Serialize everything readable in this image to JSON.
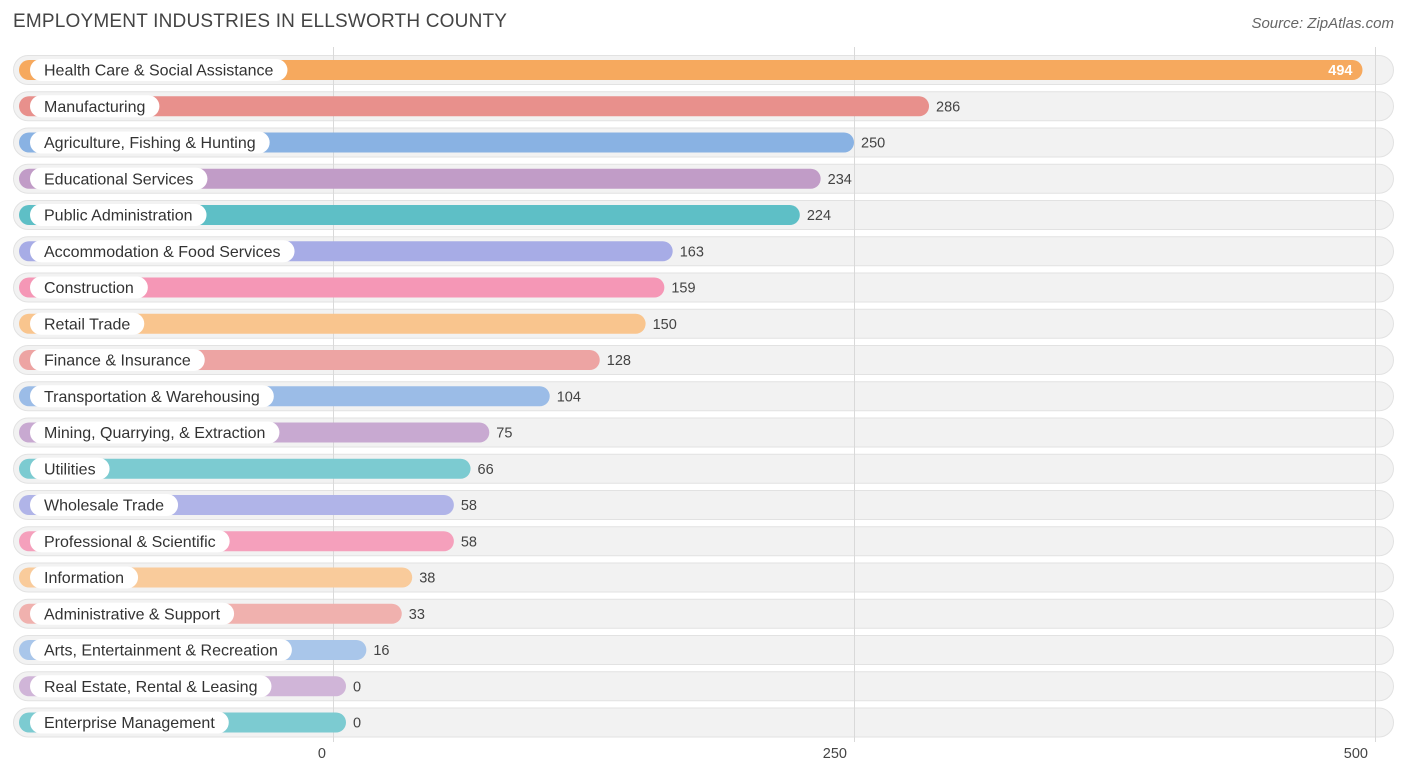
{
  "chart_data": {
    "type": "bar",
    "orientation": "horizontal",
    "title": "EMPLOYMENT INDUSTRIES IN ELLSWORTH COUNTY",
    "source": "Source: ZipAtlas.com",
    "categories": [
      "Health Care & Social Assistance",
      "Manufacturing",
      "Agriculture, Fishing & Hunting",
      "Educational Services",
      "Public Administration",
      "Accommodation & Food Services",
      "Construction",
      "Retail Trade",
      "Finance & Insurance",
      "Transportation & Warehousing",
      "Mining, Quarrying, & Extraction",
      "Utilities",
      "Wholesale Trade",
      "Professional & Scientific",
      "Information",
      "Administrative & Support",
      "Arts, Entertainment & Recreation",
      "Real Estate, Rental & Leasing",
      "Enterprise Management"
    ],
    "values": [
      494,
      286,
      250,
      234,
      224,
      163,
      159,
      150,
      128,
      104,
      75,
      66,
      58,
      58,
      38,
      33,
      16,
      0,
      0
    ],
    "colors": [
      "#f6a95e",
      "#e8908c",
      "#89b2e3",
      "#c19cc7",
      "#5ebfc6",
      "#a7ace6",
      "#f597b6",
      "#f9c58e",
      "#eda4a3",
      "#9bbce7",
      "#c8a9d1",
      "#7ccbd1",
      "#b0b4e8",
      "#f5a0bc",
      "#f9cb9b",
      "#f0b1ae",
      "#a9c6ea",
      "#d0b5d8",
      "#7ccbd1"
    ],
    "xlim": [
      0,
      500
    ],
    "xticks": [
      0,
      250,
      500
    ],
    "xtick_labels": [
      "0",
      "250",
      "500"
    ],
    "grid": true
  }
}
